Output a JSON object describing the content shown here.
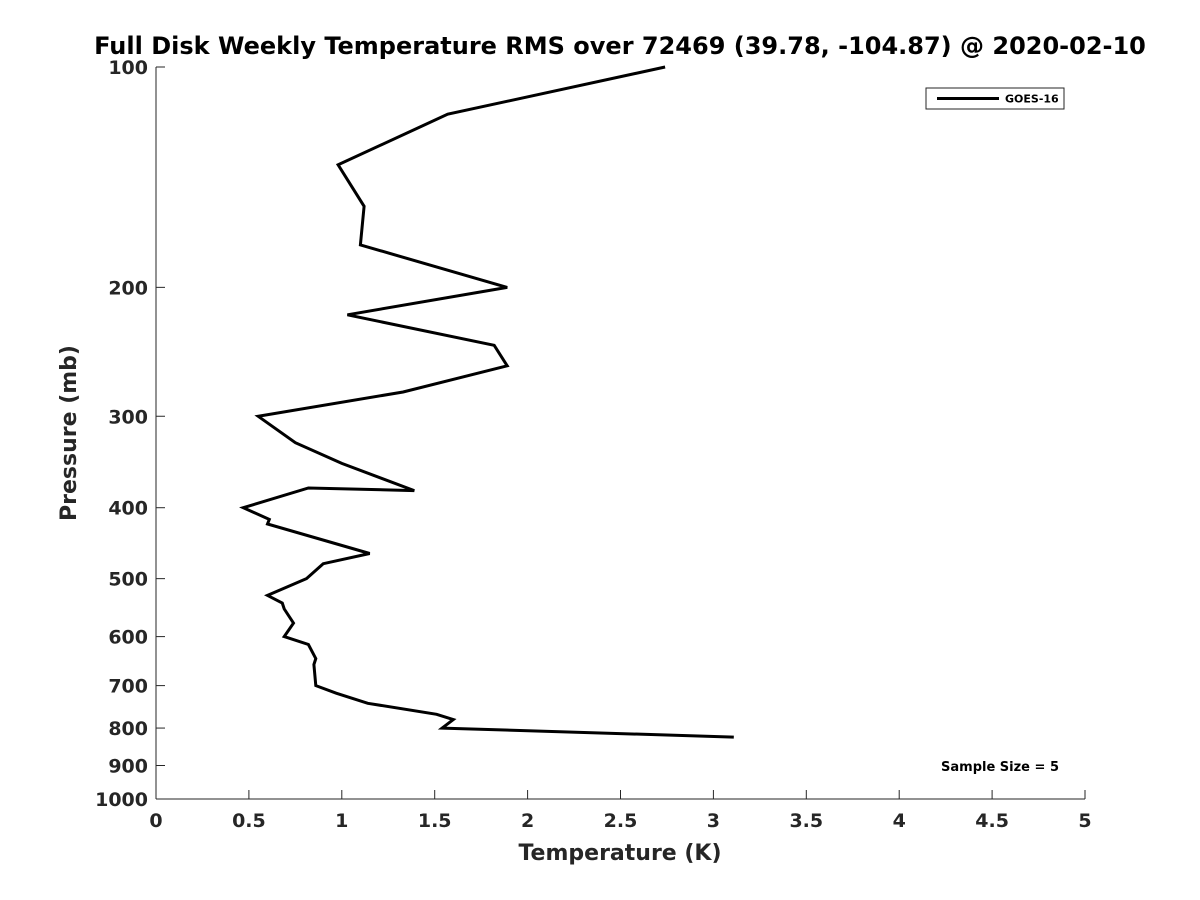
{
  "chart_data": {
    "type": "line",
    "title": "Full Disk Weekly Temperature RMS over 72469 (39.78, -104.87) @ 2020-02-10",
    "xlabel": "Temperature (K)",
    "ylabel": "Pressure (mb)",
    "xlim": [
      0,
      5
    ],
    "ylim": [
      100,
      1000
    ],
    "yscale": "log",
    "yreversed": true,
    "grid": false,
    "legend_position": "top-right",
    "x_ticks": [
      0,
      0.5,
      1,
      1.5,
      2,
      2.5,
      3,
      3.5,
      4,
      4.5,
      5
    ],
    "x_tick_labels": [
      "0",
      "0.5",
      "1",
      "1.5",
      "2",
      "2.5",
      "3",
      "3.5",
      "4",
      "4.5",
      "5"
    ],
    "y_ticks": [
      100,
      200,
      300,
      400,
      500,
      600,
      700,
      800,
      900,
      1000
    ],
    "y_tick_labels": [
      "100",
      "200",
      "300",
      "400",
      "500",
      "600",
      "700",
      "800",
      "900",
      "1000"
    ],
    "series": [
      {
        "name": "GOES-16",
        "color": "#000000",
        "x": [
          2.74,
          1.57,
          0.98,
          1.12,
          1.1,
          1.89,
          1.03,
          1.82,
          1.89,
          1.33,
          0.55,
          0.75,
          1.0,
          1.39,
          0.82,
          0.47,
          0.61,
          0.6,
          1.15,
          0.9,
          0.81,
          0.6,
          0.68,
          0.69,
          0.74,
          0.69,
          0.82,
          0.86,
          0.85,
          0.86,
          0.97,
          1.14,
          1.51,
          1.6,
          1.54,
          3.11
        ],
        "y": [
          100,
          116,
          136,
          155,
          175,
          200,
          218,
          240,
          256,
          278,
          300,
          326,
          348,
          379,
          376,
          400,
          415,
          421,
          462,
          477,
          500,
          527,
          540,
          550,
          575,
          600,
          615,
          643,
          655,
          700,
          717,
          740,
          766,
          779,
          800,
          823
        ]
      }
    ],
    "annotations": [
      {
        "text": "Sample Size = 5"
      }
    ]
  }
}
